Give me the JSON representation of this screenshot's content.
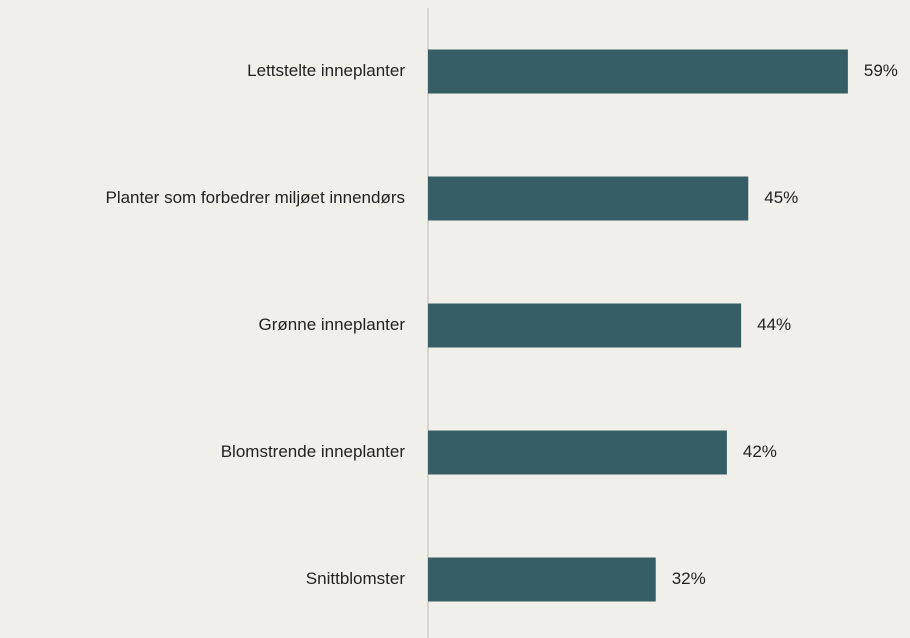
{
  "chart_data": {
    "type": "barh",
    "categories": [
      "Lettstelte inneplanter",
      "Planter som forbedrer miljøet innendørs",
      "Grønne inneplanter",
      "Blomstrende inneplanter",
      "Snittblomster"
    ],
    "values": [
      59,
      45,
      44,
      42,
      32
    ],
    "value_labels": [
      "59%",
      "45%",
      "44%",
      "42%",
      "32%"
    ],
    "color": "#375e66",
    "xlim": [
      0,
      60
    ]
  }
}
